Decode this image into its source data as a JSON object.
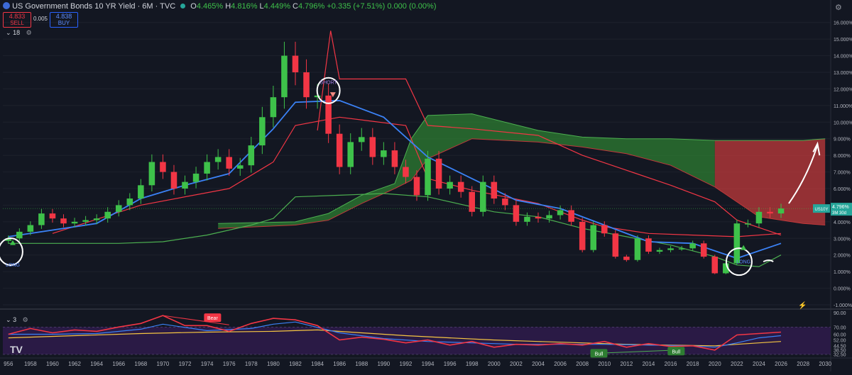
{
  "header": {
    "symbol_title": "US Government Bonds 10 YR Yield · 6M · TVC",
    "ohlc": {
      "o_label": "O",
      "o": "4.465%",
      "h_label": "H",
      "h": "4.816%",
      "l_label": "L",
      "l": "4.449%",
      "c_label": "C",
      "c": "4.796%",
      "change": "+0.335 (+7.51%)",
      "extra": "0.000 (0.00%)"
    },
    "sell_price": "4.833",
    "sell_label": "SELL",
    "spread": "0.005",
    "buy_price": "4.838",
    "buy_label": "BUY",
    "main_indicator_count": "18",
    "lower_indicator_count": "3"
  },
  "colors": {
    "background": "#131722",
    "up": "#26a69a",
    "candle_up": "#3ec14a",
    "candle_down": "#f23645",
    "blue_line": "#3b82f6",
    "red_line": "#f23645",
    "green_line": "#4caf50",
    "rsi_line": "#f23645",
    "rsi_ma": "#3b82f6",
    "rsi_slow": "#f5c542",
    "rsi_band": "#2a1a45",
    "annotation": "#ffffff"
  },
  "annotations": {
    "long_left": "LONG",
    "short": "SHORT",
    "long_right": "LONG",
    "bear": "Bear",
    "bull1": "Bull",
    "bull2": "Bull"
  },
  "price_tag": {
    "symbol": "US10Y",
    "value": "4.796%",
    "countdown": "3M 30d"
  },
  "chart_data": [
    {
      "type": "candlestick",
      "title": "US Government Bonds 10 YR Yield",
      "interval": "6M",
      "ylabel": "",
      "ylim": [
        -1,
        16.5
      ],
      "y_ticks": [
        "16.000%",
        "15.000%",
        "14.000%",
        "13.000%",
        "12.000%",
        "11.000%",
        "10.000%",
        "9.000%",
        "8.000%",
        "7.000%",
        "6.000%",
        "5.000%",
        "4.000%",
        "3.000%",
        "2.000%",
        "1.000%",
        "0.000%",
        "-1.000%"
      ],
      "x_ticks": [
        "956",
        "1958",
        "1960",
        "1962",
        "1964",
        "1966",
        "1968",
        "1970",
        "1972",
        "1974",
        "1976",
        "1978",
        "1980",
        "1982",
        "1984",
        "1986",
        "1988",
        "1990",
        "1992",
        "1994",
        "1996",
        "1998",
        "2000",
        "2002",
        "2004",
        "2006",
        "2008",
        "2010",
        "2012",
        "2014",
        "2016",
        "2018",
        "2020",
        "2022",
        "2024",
        "2026",
        "2028",
        "2030"
      ],
      "series": [
        {
          "name": "closes",
          "x": [
            1956,
            1957,
            1958,
            1959,
            1960,
            1961,
            1962,
            1963,
            1964,
            1965,
            1966,
            1967,
            1968,
            1969,
            1970,
            1971,
            1972,
            1973,
            1974,
            1975,
            1976,
            1977,
            1978,
            1979,
            1980,
            1981,
            1982,
            1983,
            1984,
            1985,
            1986,
            1987,
            1988,
            1989,
            1990,
            1991,
            1992,
            1993,
            1994,
            1995,
            1996,
            1997,
            1998,
            1999,
            2000,
            2001,
            2002,
            2003,
            2004,
            2005,
            2006,
            2007,
            2008,
            2009,
            2010,
            2011,
            2012,
            2013,
            2014,
            2015,
            2016,
            2017,
            2018,
            2019,
            2020,
            2021,
            2022,
            2023,
            2024,
            2025,
            2026
          ],
          "y": [
            3.0,
            3.4,
            3.8,
            4.5,
            4.2,
            3.9,
            4.0,
            4.1,
            4.2,
            4.6,
            5.0,
            5.4,
            6.2,
            7.6,
            7.0,
            6.0,
            6.4,
            6.9,
            7.6,
            7.9,
            7.2,
            7.4,
            8.6,
            10.3,
            11.5,
            14.0,
            13.0,
            11.5,
            11.6,
            9.3,
            7.3,
            8.8,
            9.1,
            7.9,
            8.3,
            7.3,
            6.7,
            5.6,
            7.8,
            6.0,
            6.4,
            5.8,
            4.6,
            6.4,
            5.4,
            5.0,
            4.0,
            4.3,
            4.2,
            4.4,
            4.7,
            4.0,
            2.3,
            3.8,
            3.3,
            1.9,
            1.7,
            3.0,
            2.2,
            2.3,
            2.4,
            2.4,
            2.7,
            1.9,
            0.9,
            1.5,
            3.9,
            3.9,
            4.6,
            4.5,
            4.8
          ]
        },
        {
          "name": "blue_line",
          "x": [
            1956,
            1964,
            1968,
            1972,
            1976,
            1980,
            1982,
            1986,
            1990,
            1994,
            1998,
            2002,
            2006,
            2010,
            2014,
            2018,
            2022,
            2026
          ],
          "y": [
            3.1,
            3.9,
            5.4,
            6.2,
            6.9,
            9.6,
            11.2,
            11.3,
            10.3,
            7.9,
            6.6,
            5.3,
            4.8,
            3.8,
            2.8,
            2.7,
            1.8,
            2.7
          ]
        },
        {
          "name": "red_upper",
          "x": [
            1984,
            1985.2,
            1986,
            1992,
            1994,
            1998,
            2004,
            2008,
            2012,
            2016,
            2020,
            2022,
            2026
          ],
          "y": [
            9.5,
            15.5,
            12.6,
            12.6,
            9.8,
            9.6,
            9.2,
            8.0,
            7.1,
            6.2,
            5.2,
            4.1,
            3.2
          ]
        },
        {
          "name": "red_lower",
          "x": [
            1960,
            1968,
            1976,
            1980,
            1982,
            1986,
            1992,
            1994,
            1998,
            2004,
            2008,
            2010,
            2014,
            2018,
            2022,
            2026
          ],
          "y": [
            3.3,
            5.0,
            6.0,
            7.6,
            9.8,
            10.3,
            9.8,
            6.6,
            5.9,
            5.1,
            4.1,
            3.7,
            3.3,
            3.2,
            3.1,
            3.3
          ]
        },
        {
          "name": "green_lower",
          "x": [
            1956,
            1960,
            1966,
            1970,
            1974,
            1978,
            1980,
            1982,
            1986,
            1990,
            1994,
            2000,
            2004,
            2008,
            2012,
            2016,
            2020,
            2022,
            2024,
            2026
          ],
          "y": [
            2.7,
            2.7,
            2.7,
            2.8,
            3.2,
            3.8,
            4.2,
            5.5,
            5.6,
            5.7,
            5.5,
            4.6,
            4.3,
            3.6,
            3.1,
            2.6,
            1.9,
            1.4,
            1.3,
            2.0
          ]
        },
        {
          "name": "cloud_a",
          "x": [
            1975,
            1982,
            1985,
            1988,
            1991,
            1992.5,
            1994,
            1998,
            2004,
            2008,
            2012,
            2016,
            2020,
            2024,
            2028,
            2030
          ],
          "y": [
            3.9,
            4.0,
            4.5,
            5.6,
            6.3,
            9.0,
            10.4,
            10.5,
            9.5,
            9.1,
            9.0,
            9.0,
            8.9,
            8.9,
            8.9,
            9.0
          ]
        },
        {
          "name": "cloud_b",
          "x": [
            1975,
            1982,
            1985,
            1988,
            1991,
            1992.5,
            1994,
            1998,
            2004,
            2008,
            2012,
            2016,
            2020,
            2024,
            2028,
            2030
          ],
          "y": [
            3.6,
            3.8,
            4.1,
            5.1,
            6.0,
            6.5,
            7.8,
            9.0,
            8.8,
            8.5,
            8.1,
            7.4,
            6.1,
            4.3,
            3.9,
            3.8
          ]
        }
      ]
    },
    {
      "type": "line",
      "title": "",
      "ylabel": "",
      "ylim": [
        30,
        91
      ],
      "y_ticks": [
        "90.00",
        "70.00",
        "60.00",
        "52.00",
        "44.50",
        "38.50",
        "32.50"
      ],
      "band": [
        32,
        70
      ],
      "series": [
        {
          "name": "rsi",
          "x": [
            1956,
            1958,
            1960,
            1962,
            1964,
            1966,
            1968,
            1970,
            1972,
            1974,
            1976,
            1978,
            1980,
            1982,
            1984,
            1986,
            1988,
            1990,
            1992,
            1994,
            1996,
            1998,
            2000,
            2002,
            2004,
            2006,
            2008,
            2010,
            2012,
            2014,
            2016,
            2018,
            2020,
            2022,
            2024,
            2026
          ],
          "y": [
            60,
            68,
            62,
            66,
            64,
            70,
            75,
            86,
            72,
            72,
            64,
            75,
            82,
            80,
            72,
            52,
            56,
            53,
            48,
            52,
            45,
            50,
            42,
            46,
            45,
            47,
            45,
            50,
            42,
            47,
            43,
            44,
            38,
            59,
            61,
            63
          ]
        },
        {
          "name": "rsi_ma",
          "x": [
            1956,
            1960,
            1964,
            1968,
            1970,
            1974,
            1978,
            1980,
            1982,
            1986,
            1990,
            1994,
            1998,
            2002,
            2006,
            2010,
            2014,
            2018,
            2020,
            2022,
            2024,
            2026
          ],
          "y": [
            60,
            60,
            61,
            67,
            74,
            65,
            68,
            74,
            77,
            62,
            54,
            50,
            48,
            46,
            46,
            46,
            45,
            44,
            42,
            48,
            55,
            58
          ]
        },
        {
          "name": "rsi_slow",
          "x": [
            1956,
            1962,
            1968,
            1974,
            1980,
            1984,
            1988,
            1992,
            1996,
            2000,
            2004,
            2008,
            2012,
            2016,
            2020,
            2022,
            2026
          ],
          "y": [
            55,
            58,
            61,
            63,
            64,
            66,
            62,
            58,
            55,
            52,
            50,
            48,
            46,
            45,
            44,
            46,
            50
          ]
        }
      ]
    }
  ]
}
